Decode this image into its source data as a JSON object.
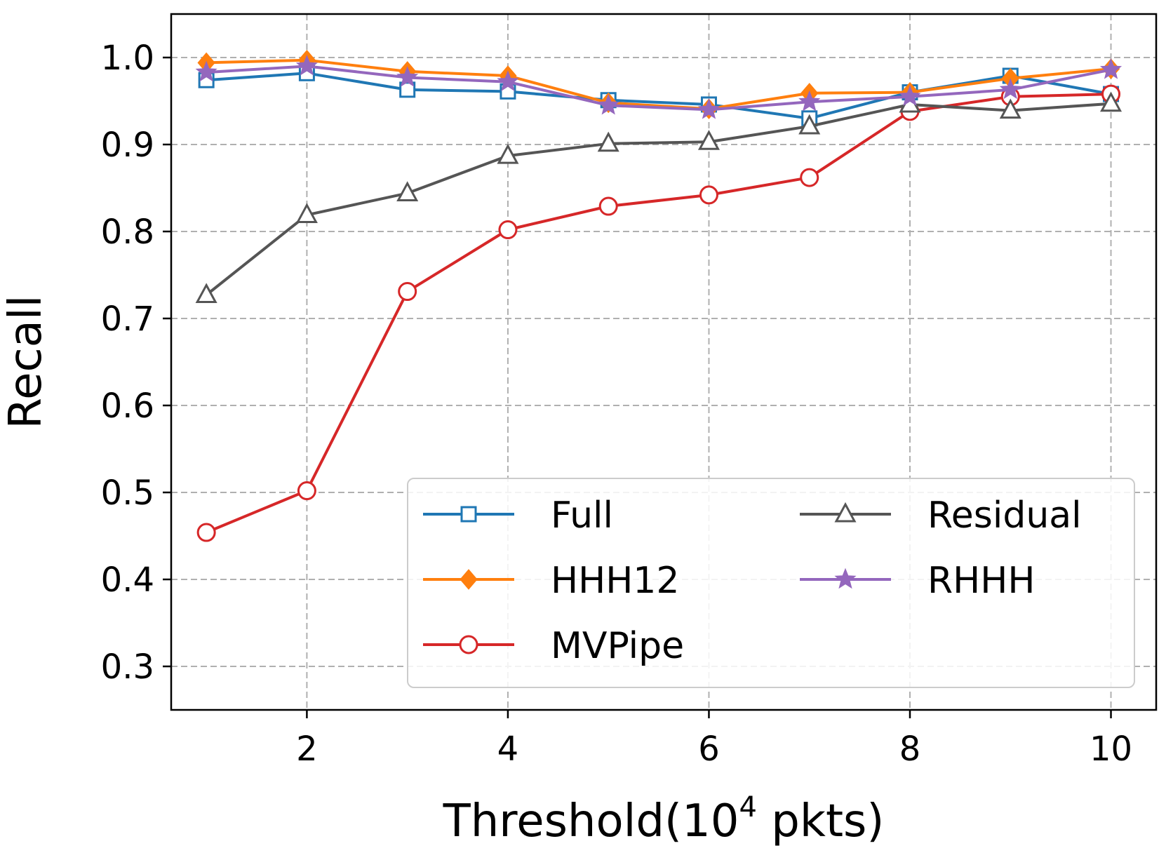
{
  "chart_data": {
    "type": "line",
    "title": "",
    "xlabel": "Threshold(10",
    "xlabel_superscript": "4",
    "xlabel_suffix": " pkts)",
    "ylabel": "Recall",
    "xlim": [
      0.65,
      10.45
    ],
    "ylim": [
      0.25,
      1.05
    ],
    "xticks": [
      2,
      4,
      6,
      8,
      10
    ],
    "yticks": [
      0.3,
      0.4,
      0.5,
      0.6,
      0.7,
      0.8,
      0.9,
      1.0
    ],
    "xtick_labels": [
      "2",
      "4",
      "6",
      "8",
      "10"
    ],
    "ytick_labels": [
      "0.3",
      "0.4",
      "0.5",
      "0.6",
      "0.7",
      "0.8",
      "0.9",
      "1.0"
    ],
    "grid": true,
    "legend_position": "lower-right",
    "legend_columns": 2,
    "x": [
      1,
      2,
      3,
      4,
      5,
      6,
      7,
      8,
      9,
      10
    ],
    "series": [
      {
        "name": "Full",
        "color": "#1f77b4",
        "marker": "square-open",
        "values": [
          0.974,
          0.982,
          0.963,
          0.961,
          0.951,
          0.946,
          0.93,
          0.96,
          0.979,
          0.958
        ]
      },
      {
        "name": "HHH12",
        "color": "#ff7f0e",
        "marker": "diamond-filled",
        "values": [
          0.994,
          0.997,
          0.984,
          0.979,
          0.948,
          0.941,
          0.959,
          0.96,
          0.976,
          0.987
        ]
      },
      {
        "name": "MVPipe",
        "color": "#d62728",
        "marker": "circle-open",
        "values": [
          0.454,
          0.502,
          0.731,
          0.802,
          0.829,
          0.842,
          0.862,
          0.938,
          0.955,
          0.958
        ]
      },
      {
        "name": "Residual",
        "color": "#555555",
        "marker": "triangle-open",
        "values": [
          0.727,
          0.819,
          0.844,
          0.887,
          0.901,
          0.903,
          0.921,
          0.946,
          0.939,
          0.947
        ]
      },
      {
        "name": "RHHH",
        "color": "#9467bd",
        "marker": "star-filled",
        "values": [
          0.983,
          0.99,
          0.977,
          0.972,
          0.945,
          0.94,
          0.949,
          0.955,
          0.963,
          0.986
        ]
      }
    ]
  }
}
